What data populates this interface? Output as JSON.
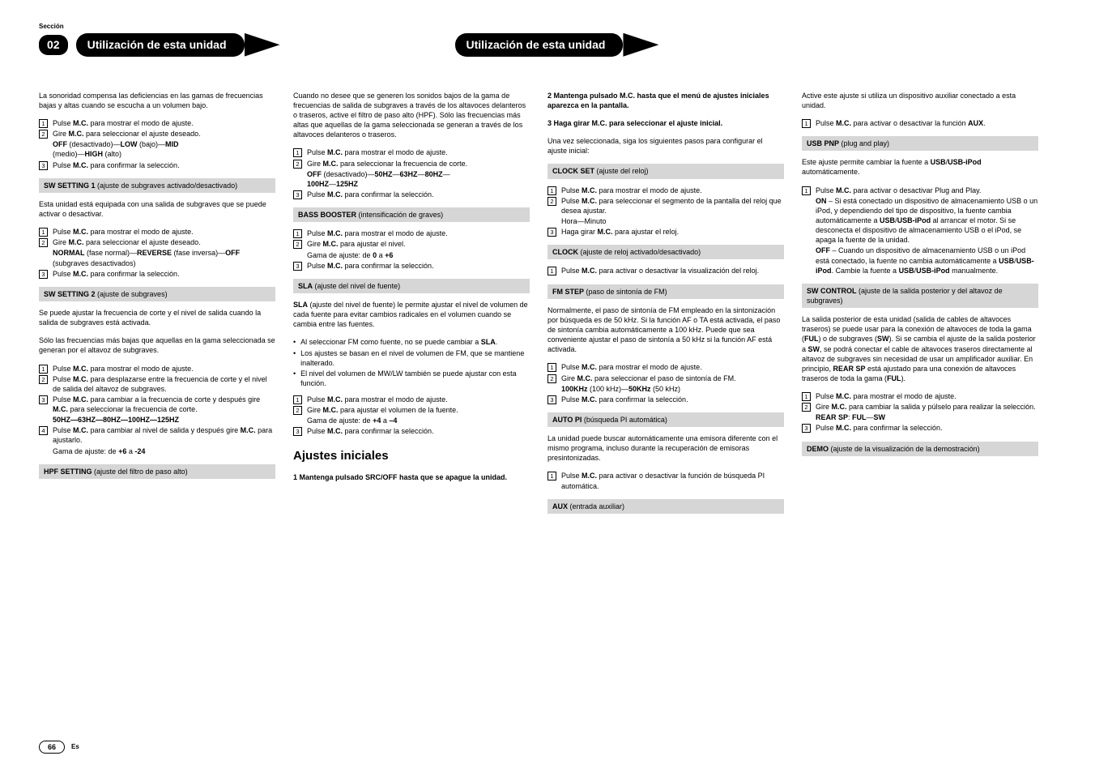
{
  "meta": {
    "seccion": "Sección",
    "badge": "02",
    "tab1": "Utilización de esta unidad",
    "tab2": "Utilización de esta unidad",
    "page": "66",
    "es": "Es"
  },
  "c1": {
    "p1": "La sonoridad compensa las deficiencias en las gamas de frecuencias bajas y altas cuando se escucha a un volumen bajo.",
    "l1a": "Pulse ",
    "l1b": "M.C.",
    "l1c": " para mostrar el modo de ajuste.",
    "l2a": "Gire ",
    "l2b": "M.C.",
    "l2c": " para seleccionar el ajuste deseado.",
    "l2da": "OFF",
    "l2db": " (desactivado)—",
    "l2dc": "LOW",
    "l2dd": " (bajo)—",
    "l2de": "MID",
    "l2df": " (medio)—",
    "l2dg": "HIGH",
    "l2dh": " (alto)",
    "l3a": "Pulse ",
    "l3b": "M.C.",
    "l3c": " para confirmar la selección.",
    "bar1a": "SW SETTING 1",
    "bar1b": " (ajuste de subgraves activado/desactivado)",
    "p2": "Esta unidad está equipada con una salida de subgraves que se puede activar o desactivar.",
    "l4a": "Pulse ",
    "l4b": "M.C.",
    "l4c": " para mostrar el modo de ajuste.",
    "l5a": "Gire ",
    "l5b": "M.C.",
    "l5c": " para seleccionar el ajuste deseado.",
    "l5da": "NORMAL",
    "l5db": " (fase normal)—",
    "l5dc": "REVERSE",
    "l5dd": " (fase inversa)—",
    "l5de": "OFF",
    "l5df": " (subgraves desactivados)",
    "l6a": "Pulse ",
    "l6b": "M.C.",
    "l6c": " para confirmar la selección.",
    "bar2a": "SW SETTING 2",
    "bar2b": " (ajuste de subgraves)",
    "p3": "Se puede ajustar la frecuencia de corte y el nivel de salida cuando la salida de subgraves está activada.",
    "p4": "Sólo las frecuencias más bajas que aquellas en la gama seleccionada se generan por el altavoz de subgraves.",
    "l7a": "Pulse ",
    "l7b": "M.C.",
    "l7c": " para mostrar el modo de ajuste.",
    "l8a": "Pulse ",
    "l8b": "M.C.",
    "l8c": " para desplazarse entre la frecuencia de corte y el nivel de salida del altavoz de subgraves.",
    "l9a": "Pulse ",
    "l9b": "M.C.",
    "l9c": " para cambiar a la frecuencia de corte y después gire ",
    "l9d": "M.C.",
    "l9e": " para seleccionar la frecuencia de corte.",
    "l9f": "50HZ—63HZ—80HZ—100HZ—125HZ",
    "l10a": "Pulse ",
    "l10b": "M.C.",
    "l10c": " para cambiar al nivel de salida y después gire ",
    "l10d": "M.C.",
    "l10e": " para ajustarlo.",
    "l10fa": "Gama de ajuste: de ",
    "l10fb": "+6",
    "l10fc": " a ",
    "l10fd": "-24",
    "bar3a": "HPF SETTING",
    "bar3b": " (ajuste del filtro de paso alto)"
  },
  "c2": {
    "p1": "Cuando no desee que se generen los sonidos bajos de la gama de frecuencias de salida de subgraves a través de los altavoces delanteros o traseros, active el filtro de paso alto (HPF). Sólo las frecuencias más altas que aquellas de la gama seleccionada se generan a través de los altavoces delanteros o traseros.",
    "l1a": "Pulse ",
    "l1b": "M.C.",
    "l1c": " para mostrar el modo de ajuste.",
    "l2a": "Gire ",
    "l2b": "M.C.",
    "l2c": " para seleccionar la frecuencia de corte.",
    "l2da": "OFF",
    "l2db": " (desactivado)—",
    "l2dc": "50HZ",
    "l2dd": "—",
    "l2de": "63HZ",
    "l2df": "—",
    "l2dg": "80HZ",
    "l2dh": "—",
    "l2di": "100HZ",
    "l2dj": "—",
    "l2dk": "125HZ",
    "l3a": "Pulse ",
    "l3b": "M.C.",
    "l3c": " para confirmar la selección.",
    "bar1a": "BASS BOOSTER",
    "bar1b": " (intensificación de graves)",
    "l4a": "Pulse ",
    "l4b": "M.C.",
    "l4c": " para mostrar el modo de ajuste.",
    "l5a": "Gire ",
    "l5b": "M.C.",
    "l5c": " para ajustar el nivel.",
    "l5da": "Gama de ajuste: de ",
    "l5db": "0",
    "l5dc": " a ",
    "l5dd": "+6",
    "l6a": "Pulse ",
    "l6b": "M.C.",
    "l6c": " para confirmar la selección.",
    "bar2a": "SLA",
    "bar2b": " (ajuste del nivel de fuente)",
    "p2a": "SLA",
    "p2b": " (ajuste del nivel de fuente) le permite ajustar el nivel de volumen de cada fuente para evitar cambios radicales en el volumen cuando se cambia entre las fuentes.",
    "b1a": "Al seleccionar FM como fuente, no se puede cambiar a ",
    "b1b": "SLA",
    "b1c": ".",
    "b2": "Los ajustes se basan en el nivel de volumen de FM, que se mantiene inalterado.",
    "b3": "El nivel del volumen de MW/LW también se puede ajustar con esta función.",
    "l7a": "Pulse ",
    "l7b": "M.C.",
    "l7c": " para mostrar el modo de ajuste.",
    "l8a": "Gire ",
    "l8b": "M.C.",
    "l8c": " para ajustar el volumen de la fuente.",
    "l8da": "Gama de ajuste: de ",
    "l8db": "+4",
    "l8dc": " a ",
    "l8dd": "–4",
    "l9a": "Pulse ",
    "l9b": "M.C.",
    "l9c": " para confirmar la selección.",
    "h1": "Ajustes iniciales",
    "s1a": "1   Mantenga pulsado SRC/OFF hasta que se apague la unidad."
  },
  "c3": {
    "s2": "2   Mantenga pulsado M.C. hasta que el menú de ajustes iniciales aparezca en la pantalla.",
    "s3": "3   Haga girar M.C. para seleccionar el ajuste inicial.",
    "p1": "Una vez seleccionada, siga los siguientes pasos para configurar el ajuste inicial:",
    "bar1a": "CLOCK SET",
    "bar1b": " (ajuste del reloj)",
    "l1a": "Pulse ",
    "l1b": "M.C.",
    "l1c": " para mostrar el modo de ajuste.",
    "l2a": "Pulse ",
    "l2b": "M.C.",
    "l2c": " para seleccionar el segmento de la pantalla del reloj que desea ajustar.",
    "l2d": "Hora—Minuto",
    "l3a": "Haga girar ",
    "l3b": "M.C.",
    "l3c": " para ajustar el reloj.",
    "bar2a": "CLOCK",
    "bar2b": " (ajuste de reloj activado/desactivado)",
    "l4a": "Pulse ",
    "l4b": "M.C.",
    "l4c": " para activar o desactivar la visualización del reloj.",
    "bar3a": "FM STEP",
    "bar3b": " (paso de sintonía de FM)",
    "p2": "Normalmente, el paso de sintonía de FM empleado en la sintonización por búsqueda es de 50 kHz. Si la función AF o TA está activada, el paso de sintonía cambia automáticamente a 100 kHz. Puede que sea conveniente ajustar el paso de sintonía a 50 kHz si la función AF está activada.",
    "l5a": "Pulse ",
    "l5b": "M.C.",
    "l5c": " para mostrar el modo de ajuste.",
    "l6a": "Gire ",
    "l6b": "M.C.",
    "l6c": " para seleccionar el paso de sintonía de FM.",
    "l6da": "100KHz",
    "l6db": " (100 kHz)—",
    "l6dc": "50KHz",
    "l6dd": " (50 kHz)",
    "l7a": "Pulse ",
    "l7b": "M.C.",
    "l7c": " para confirmar la selección.",
    "bar4a": "AUTO PI",
    "bar4b": " (búsqueda PI automática)",
    "p3": "La unidad puede buscar automáticamente una emisora diferente con el mismo programa, incluso durante la recuperación de emisoras presintonizadas.",
    "l8a": "Pulse ",
    "l8b": "M.C.",
    "l8c": " para activar o desactivar la función de búsqueda PI automática.",
    "bar5a": "AUX",
    "bar5b": " (entrada auxiliar)"
  },
  "c4": {
    "p1": "Active este ajuste si utiliza un dispositivo auxiliar conectado a esta unidad.",
    "l1a": "Pulse ",
    "l1b": "M.C.",
    "l1c": " para activar o desactivar la función ",
    "l1d": "AUX",
    "l1e": ".",
    "bar1a": "USB PNP",
    "bar1b": " (plug and play)",
    "p2a": "Este ajuste permite cambiar la fuente a ",
    "p2b": "USB",
    "p2c": "/",
    "p2d": "USB-iPod",
    "p2e": " automáticamente.",
    "l2a": "Pulse ",
    "l2b": "M.C.",
    "l2c": " para activar o desactivar Plug and Play.",
    "l2da": "ON",
    "l2db": " – Si está conectado un dispositivo de almacenamiento USB o un iPod, y dependiendo del tipo de dispositivo, la fuente cambia automáticamente a ",
    "l2dc": "USB",
    "l2dd": "/",
    "l2de": "USB-iPod",
    "l2df": " al arrancar el motor. Si se desconecta el dispositivo de almacenamiento USB o el iPod, se apaga la fuente de la unidad.",
    "l2ea": "OFF",
    "l2eb": " – Cuando un dispositivo de almacenamiento USB o un iPod está conectado, la fuente no cambia automáticamente a ",
    "l2ec": "USB",
    "l2ed": "/",
    "l2ee": "USB-iPod",
    "l2ef": ". Cambie la fuente a ",
    "l2eg": "USB",
    "l2eh": "/",
    "l2ei": "USB-iPod",
    "l2ej": " manualmente.",
    "bar2a": "SW CONTROL",
    "bar2b": " (ajuste de la salida posterior y del altavoz de subgraves)",
    "p3a": "La salida posterior de esta unidad (salida de cables de altavoces traseros) se puede usar para la conexión de altavoces de toda la gama (",
    "p3b": "FUL",
    "p3c": ") o de subgraves (",
    "p3d": "SW",
    "p3e": "). Si se cambia el ajuste de la salida posterior a ",
    "p3f": "SW",
    "p3g": ", se podrá conectar el cable de altavoces traseros directamente al altavoz de subgraves sin necesidad de usar un amplificador auxiliar. En principio, ",
    "p3h": "REAR SP",
    "p3i": " está ajustado para una conexión de altavoces traseros de toda la gama (",
    "p3j": "FUL",
    "p3k": ").",
    "l3a": "Pulse ",
    "l3b": "M.C.",
    "l3c": " para mostrar el modo de ajuste.",
    "l4a": "Gire ",
    "l4b": "M.C.",
    "l4c": " para cambiar la salida y púlselo para realizar la selección.",
    "l4da": "REAR SP",
    "l4db": ": ",
    "l4dc": "FUL",
    "l4dd": "—",
    "l4de": "SW",
    "l5a": "Pulse ",
    "l5b": "M.C.",
    "l5c": " para confirmar la selección.",
    "bar3a": "DEMO",
    "bar3b": " (ajuste de la visualización de la demostración)"
  }
}
